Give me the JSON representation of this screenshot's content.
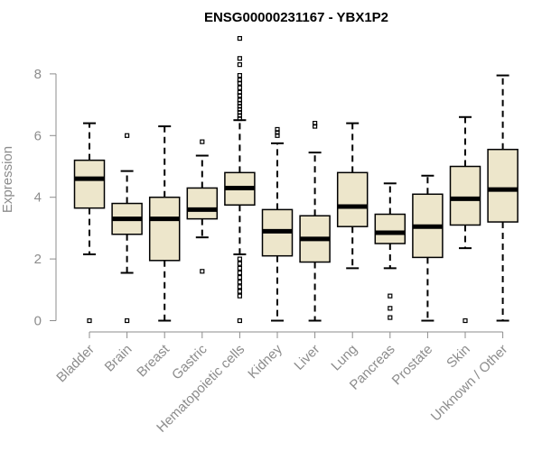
{
  "chart_data": {
    "type": "boxplot",
    "title": "ENSG00000231167 - YBX1P2",
    "xlabel": "",
    "ylabel": "Expression",
    "ylim": [
      0,
      8
    ],
    "yticks": [
      0,
      2,
      4,
      6,
      8
    ],
    "box_fill": "#ede6cb",
    "categories": [
      "Bladder",
      "Brain",
      "Breast",
      "Gastric",
      "Hematopoietic cells",
      "Kidney",
      "Liver",
      "Lung",
      "Pancreas",
      "Prostate",
      "Skin",
      "Unknown / Other"
    ],
    "series": [
      {
        "name": "Bladder",
        "whisker_low": 2.15,
        "q1": 3.65,
        "median": 4.6,
        "q3": 5.2,
        "whisker_high": 6.4,
        "outliers": [
          0
        ]
      },
      {
        "name": "Brain",
        "whisker_low": 1.55,
        "q1": 2.8,
        "median": 3.3,
        "q3": 3.8,
        "whisker_high": 4.85,
        "outliers": [
          6.0,
          0
        ]
      },
      {
        "name": "Breast",
        "whisker_low": 0,
        "q1": 1.95,
        "median": 3.3,
        "q3": 4.0,
        "whisker_high": 6.3,
        "outliers": []
      },
      {
        "name": "Gastric",
        "whisker_low": 2.7,
        "q1": 3.3,
        "median": 3.6,
        "q3": 4.3,
        "whisker_high": 5.35,
        "outliers": [
          5.8,
          1.6
        ]
      },
      {
        "name": "Hematopoietic cells",
        "whisker_low": 2.15,
        "q1": 3.75,
        "median": 4.3,
        "q3": 4.8,
        "whisker_high": 6.5,
        "outliers": [
          9.15,
          8.5,
          8.3,
          7.95,
          7.8,
          7.7,
          7.55,
          7.4,
          7.3,
          7.15,
          7.05,
          6.95,
          6.85,
          6.75,
          6.65,
          6.55,
          2.0,
          1.85,
          1.7,
          1.55,
          1.4,
          1.25,
          1.1,
          0.95,
          0.8,
          0
        ]
      },
      {
        "name": "Kidney",
        "whisker_low": 0,
        "q1": 2.1,
        "median": 2.9,
        "q3": 3.6,
        "whisker_high": 5.75,
        "outliers": [
          6.2,
          6.1,
          6.0
        ]
      },
      {
        "name": "Liver",
        "whisker_low": 0,
        "q1": 1.9,
        "median": 2.65,
        "q3": 3.4,
        "whisker_high": 5.45,
        "outliers": [
          6.4,
          6.3
        ]
      },
      {
        "name": "Lung",
        "whisker_low": 1.7,
        "q1": 3.05,
        "median": 3.7,
        "q3": 4.8,
        "whisker_high": 6.4,
        "outliers": []
      },
      {
        "name": "Pancreas",
        "whisker_low": 1.7,
        "q1": 2.5,
        "median": 2.85,
        "q3": 3.45,
        "whisker_high": 4.45,
        "outliers": [
          0.8,
          0.4,
          0.1
        ]
      },
      {
        "name": "Prostate",
        "whisker_low": 0,
        "q1": 2.05,
        "median": 3.05,
        "q3": 4.1,
        "whisker_high": 4.7,
        "outliers": []
      },
      {
        "name": "Skin",
        "whisker_low": 2.35,
        "q1": 3.1,
        "median": 3.95,
        "q3": 5.0,
        "whisker_high": 6.6,
        "outliers": [
          0
        ]
      },
      {
        "name": "Unknown / Other",
        "whisker_low": 0,
        "q1": 3.2,
        "median": 4.25,
        "q3": 5.55,
        "whisker_high": 7.95,
        "outliers": []
      }
    ]
  }
}
